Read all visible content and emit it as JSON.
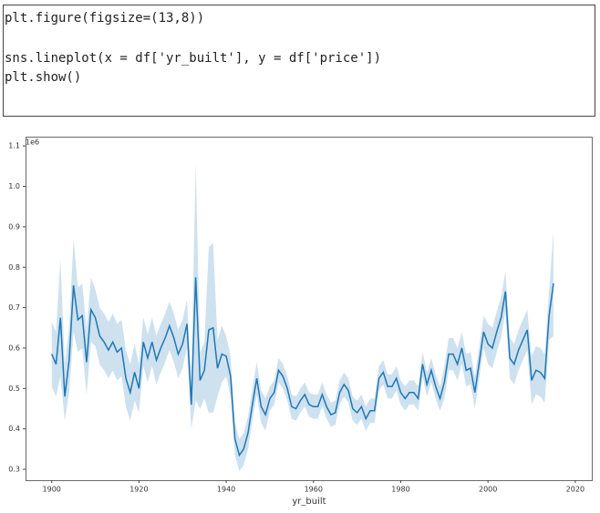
{
  "code": {
    "lines": [
      "plt.figure(figsize=(13,8))",
      "sns.lineplot(x = df['yr_built'], y = df['price'])",
      "plt.show()"
    ]
  },
  "chart_data": {
    "type": "line",
    "offset_label": "1e6",
    "xlabel": "yr_built",
    "x": [
      1900,
      1901,
      1902,
      1903,
      1904,
      1905,
      1906,
      1907,
      1908,
      1909,
      1910,
      1911,
      1912,
      1913,
      1914,
      1915,
      1916,
      1917,
      1918,
      1919,
      1920,
      1921,
      1922,
      1923,
      1924,
      1925,
      1926,
      1927,
      1928,
      1929,
      1930,
      1931,
      1932,
      1933,
      1934,
      1935,
      1936,
      1937,
      1938,
      1939,
      1940,
      1941,
      1942,
      1943,
      1944,
      1945,
      1946,
      1947,
      1948,
      1949,
      1950,
      1951,
      1952,
      1953,
      1954,
      1955,
      1956,
      1957,
      1958,
      1959,
      1960,
      1961,
      1962,
      1963,
      1964,
      1965,
      1966,
      1967,
      1968,
      1969,
      1970,
      1971,
      1972,
      1973,
      1974,
      1975,
      1976,
      1977,
      1978,
      1979,
      1980,
      1981,
      1982,
      1983,
      1984,
      1985,
      1986,
      1987,
      1988,
      1989,
      1990,
      1991,
      1992,
      1993,
      1994,
      1995,
      1996,
      1997,
      1998,
      1999,
      2000,
      2001,
      2002,
      2003,
      2004,
      2005,
      2006,
      2007,
      2008,
      2009,
      2010,
      2011,
      2012,
      2013,
      2014,
      2015
    ],
    "series": [
      {
        "color": "#1f77b4",
        "band_color": "#aecde4",
        "values": [
          0.585,
          0.56,
          0.675,
          0.48,
          0.57,
          0.755,
          0.67,
          0.68,
          0.565,
          0.695,
          0.675,
          0.63,
          0.615,
          0.595,
          0.615,
          0.59,
          0.6,
          0.525,
          0.49,
          0.54,
          0.5,
          0.615,
          0.575,
          0.615,
          0.57,
          0.6,
          0.625,
          0.655,
          0.625,
          0.585,
          0.61,
          0.66,
          0.46,
          0.775,
          0.52,
          0.545,
          0.645,
          0.65,
          0.55,
          0.585,
          0.58,
          0.53,
          0.375,
          0.335,
          0.35,
          0.39,
          0.46,
          0.525,
          0.455,
          0.435,
          0.475,
          0.49,
          0.545,
          0.53,
          0.5,
          0.455,
          0.45,
          0.47,
          0.485,
          0.46,
          0.455,
          0.455,
          0.485,
          0.455,
          0.435,
          0.44,
          0.49,
          0.51,
          0.495,
          0.45,
          0.44,
          0.455,
          0.425,
          0.445,
          0.445,
          0.525,
          0.54,
          0.505,
          0.505,
          0.525,
          0.49,
          0.475,
          0.49,
          0.49,
          0.475,
          0.56,
          0.51,
          0.545,
          0.505,
          0.475,
          0.515,
          0.585,
          0.585,
          0.56,
          0.6,
          0.545,
          0.55,
          0.49,
          0.565,
          0.64,
          0.61,
          0.6,
          0.64,
          0.675,
          0.74,
          0.575,
          0.56,
          0.595,
          0.62,
          0.645,
          0.52,
          0.545,
          0.54,
          0.525,
          0.68,
          0.76
        ],
        "ci_high": [
          0.665,
          0.64,
          0.82,
          0.56,
          0.65,
          0.87,
          0.75,
          0.76,
          0.645,
          0.775,
          0.745,
          0.7,
          0.685,
          0.665,
          0.685,
          0.66,
          0.67,
          0.595,
          0.56,
          0.61,
          0.56,
          0.675,
          0.635,
          0.675,
          0.63,
          0.66,
          0.685,
          0.715,
          0.685,
          0.645,
          0.67,
          0.72,
          0.52,
          1.06,
          0.59,
          0.615,
          0.85,
          0.86,
          0.62,
          0.655,
          0.63,
          0.58,
          0.415,
          0.375,
          0.39,
          0.43,
          0.5,
          0.565,
          0.495,
          0.475,
          0.505,
          0.52,
          0.575,
          0.56,
          0.53,
          0.485,
          0.48,
          0.5,
          0.515,
          0.49,
          0.485,
          0.485,
          0.515,
          0.485,
          0.465,
          0.47,
          0.52,
          0.54,
          0.525,
          0.48,
          0.47,
          0.485,
          0.455,
          0.475,
          0.475,
          0.555,
          0.57,
          0.535,
          0.535,
          0.555,
          0.52,
          0.505,
          0.52,
          0.52,
          0.505,
          0.59,
          0.54,
          0.575,
          0.535,
          0.505,
          0.555,
          0.625,
          0.625,
          0.6,
          0.64,
          0.585,
          0.59,
          0.53,
          0.605,
          0.68,
          0.66,
          0.65,
          0.69,
          0.725,
          0.79,
          0.625,
          0.61,
          0.645,
          0.67,
          0.695,
          0.58,
          0.605,
          0.6,
          0.585,
          0.74,
          0.89
        ],
        "ci_low": [
          0.505,
          0.48,
          0.53,
          0.42,
          0.49,
          0.64,
          0.59,
          0.6,
          0.485,
          0.615,
          0.605,
          0.56,
          0.545,
          0.525,
          0.545,
          0.52,
          0.53,
          0.455,
          0.42,
          0.47,
          0.44,
          0.555,
          0.515,
          0.555,
          0.51,
          0.54,
          0.565,
          0.595,
          0.565,
          0.525,
          0.55,
          0.6,
          0.4,
          0.47,
          0.45,
          0.475,
          0.44,
          0.44,
          0.48,
          0.515,
          0.53,
          0.48,
          0.335,
          0.295,
          0.31,
          0.35,
          0.42,
          0.485,
          0.415,
          0.395,
          0.445,
          0.46,
          0.515,
          0.5,
          0.47,
          0.425,
          0.42,
          0.44,
          0.455,
          0.43,
          0.425,
          0.425,
          0.455,
          0.425,
          0.405,
          0.41,
          0.46,
          0.48,
          0.465,
          0.42,
          0.41,
          0.425,
          0.395,
          0.415,
          0.415,
          0.495,
          0.51,
          0.475,
          0.475,
          0.495,
          0.46,
          0.445,
          0.46,
          0.46,
          0.445,
          0.53,
          0.48,
          0.515,
          0.475,
          0.445,
          0.475,
          0.545,
          0.545,
          0.52,
          0.56,
          0.505,
          0.51,
          0.45,
          0.525,
          0.6,
          0.56,
          0.55,
          0.59,
          0.625,
          0.69,
          0.525,
          0.51,
          0.545,
          0.57,
          0.595,
          0.46,
          0.485,
          0.48,
          0.465,
          0.62,
          0.63
        ]
      }
    ],
    "xlim": [
      1894,
      2024
    ],
    "ylim": [
      0.273,
      1.123
    ],
    "xticks": [
      1900,
      1920,
      1940,
      1960,
      1980,
      2000,
      2020
    ],
    "yticks": [
      0.3,
      0.4,
      0.5,
      0.6,
      0.7,
      0.8,
      0.9,
      {
        "value": 1,
        "label": "1.0"
      },
      1.1
    ]
  }
}
